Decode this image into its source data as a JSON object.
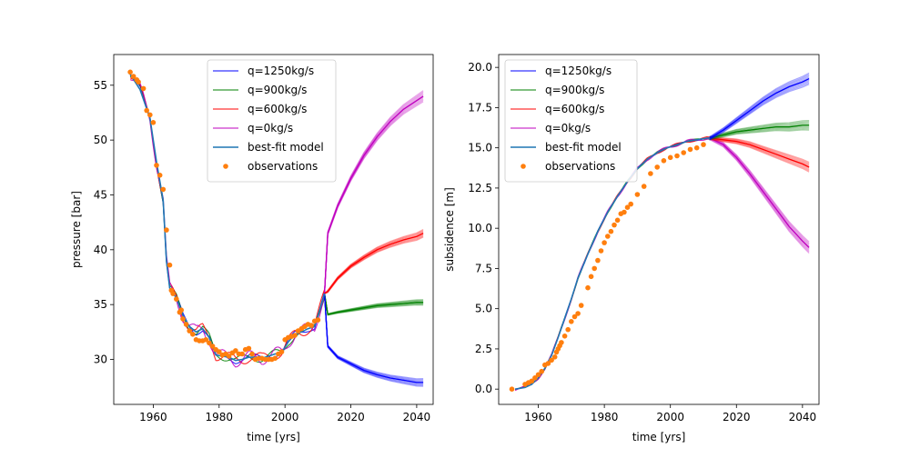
{
  "chart_data": [
    {
      "type": "line",
      "title": "",
      "xlabel": "time [yrs]",
      "ylabel": "pressure [bar]",
      "xlim": [
        1948,
        2045
      ],
      "ylim": [
        25.9,
        57.8
      ],
      "xticks": [
        1960,
        1980,
        2000,
        2020,
        2040
      ],
      "yticks": [
        30,
        35,
        40,
        45,
        50,
        55
      ],
      "legend_position": "top-center",
      "legend": [
        {
          "label": "q=1250kg/s",
          "style": "line",
          "color": "#0000ff"
        },
        {
          "label": "q=900kg/s",
          "style": "line",
          "color": "#008000"
        },
        {
          "label": "q=600kg/s",
          "style": "line",
          "color": "#ff0000"
        },
        {
          "label": "q=0kg/s",
          "style": "line",
          "color": "#bf00bf"
        },
        {
          "label": "best-fit model",
          "style": "line",
          "color": "#1f77b4"
        },
        {
          "label": "observations",
          "style": "marker",
          "color": "#ff7f0e"
        }
      ],
      "best_fit": {
        "x": [
          1953,
          1956,
          1959,
          1961,
          1963,
          1964,
          1965,
          1967,
          1969,
          1971,
          1973,
          1975,
          1977,
          1979,
          1981,
          1983,
          1985,
          1987,
          1989,
          1991,
          1993,
          1995,
          1997,
          1999,
          2001,
          2003,
          2005,
          2007,
          2009,
          2011,
          2012
        ],
        "y": [
          56.0,
          54.6,
          52.0,
          48.0,
          44.5,
          39.0,
          36.5,
          35.6,
          34.0,
          33.0,
          32.5,
          32.8,
          32.0,
          30.4,
          30.3,
          30.2,
          29.9,
          30.0,
          30.2,
          30.2,
          30.1,
          30.3,
          30.5,
          30.6,
          31.6,
          32.3,
          32.5,
          32.8,
          33.0,
          35.0,
          36.0
        ]
      },
      "history_band": 0.5,
      "observations": {
        "x": [
          1953,
          1954,
          1955,
          1955.5,
          1957,
          1958,
          1959,
          1960,
          1961,
          1962,
          1963,
          1964,
          1965,
          1965.5,
          1966,
          1967,
          1968,
          1968.5,
          1969,
          1970,
          1971,
          1972,
          1973,
          1974,
          1975,
          1976,
          1977,
          1978,
          1979,
          1980,
          1981,
          1982,
          1983,
          1984,
          1985,
          1986,
          1987,
          1988,
          1989,
          1990,
          1991,
          1992,
          1993,
          1994,
          1995,
          1996,
          1997,
          1998,
          1999,
          2000,
          2001,
          2002,
          2003,
          2004,
          2005,
          2006,
          2007,
          2008,
          2009,
          2010
        ],
        "y": [
          56.2,
          55.8,
          55.5,
          55.3,
          54.7,
          52.7,
          52.3,
          51.6,
          47.7,
          46.8,
          45.5,
          41.8,
          38.6,
          36.3,
          36.0,
          35.5,
          34.3,
          34.5,
          33.7,
          33.2,
          32.6,
          32.3,
          31.8,
          31.7,
          31.7,
          31.8,
          31.5,
          31.2,
          30.9,
          30.7,
          30.4,
          30.5,
          30.3,
          30.6,
          30.8,
          30.5,
          30.5,
          30.9,
          31.0,
          30.5,
          30.0,
          30.1,
          30.1,
          30.0,
          30.0,
          30.0,
          30.1,
          30.5,
          30.7,
          31.8,
          32.0,
          32.1,
          32.2,
          32.6,
          32.8,
          33.0,
          33.2,
          33.1,
          33.5,
          33.6
        ]
      },
      "forecast_start": {
        "x": 2012,
        "y": 36.0
      },
      "forecasts": [
        {
          "label": "q=0kg/s",
          "color": "#bf00bf",
          "x": [
            2013,
            2016,
            2020,
            2024,
            2028,
            2032,
            2036,
            2040,
            2042
          ],
          "y": [
            41.5,
            44.0,
            46.5,
            48.6,
            50.3,
            51.7,
            52.8,
            53.6,
            54.0
          ],
          "spread": 0.5
        },
        {
          "label": "q=600kg/s",
          "color": "#ff0000",
          "x": [
            2013,
            2016,
            2020,
            2024,
            2028,
            2032,
            2036,
            2040,
            2042
          ],
          "y": [
            36.2,
            37.4,
            38.5,
            39.3,
            40.0,
            40.5,
            40.9,
            41.2,
            41.5
          ],
          "spread": 0.35
        },
        {
          "label": "q=900kg/s",
          "color": "#008000",
          "x": [
            2013,
            2016,
            2020,
            2024,
            2028,
            2032,
            2036,
            2040,
            2042
          ],
          "y": [
            34.1,
            34.3,
            34.5,
            34.7,
            34.9,
            35.0,
            35.1,
            35.2,
            35.2
          ],
          "spread": 0.25
        },
        {
          "label": "q=1250kg/s",
          "color": "#0000ff",
          "x": [
            2013,
            2016,
            2020,
            2024,
            2028,
            2032,
            2036,
            2040,
            2042
          ],
          "y": [
            31.2,
            30.2,
            29.6,
            29.0,
            28.6,
            28.3,
            28.1,
            27.9,
            27.9
          ],
          "spread": 0.35
        }
      ]
    },
    {
      "type": "line",
      "title": "",
      "xlabel": "time [yrs]",
      "ylabel": "subsidence [m]",
      "xlim": [
        1948,
        2045
      ],
      "ylim": [
        -0.95,
        20.8
      ],
      "xticks": [
        1960,
        1980,
        2000,
        2020,
        2040
      ],
      "yticks": [
        0.0,
        2.5,
        5.0,
        7.5,
        10.0,
        12.5,
        15.0,
        17.5,
        20.0
      ],
      "ytick_labels": [
        "0.0",
        "2.5",
        "5.0",
        "7.5",
        "10.0",
        "12.5",
        "15.0",
        "17.5",
        "20.0"
      ],
      "legend_position": "top-left",
      "legend": [
        {
          "label": "q=1250kg/s",
          "style": "line",
          "color": "#0000ff"
        },
        {
          "label": "q=900kg/s",
          "style": "line",
          "color": "#008000"
        },
        {
          "label": "q=600kg/s",
          "style": "line",
          "color": "#ff0000"
        },
        {
          "label": "q=0kg/s",
          "style": "line",
          "color": "#bf00bf"
        },
        {
          "label": "best-fit model",
          "style": "line",
          "color": "#1f77b4"
        },
        {
          "label": "observations",
          "style": "marker",
          "color": "#ff7f0e"
        }
      ],
      "best_fit": {
        "x": [
          1953,
          1956,
          1958,
          1960,
          1962,
          1964,
          1966,
          1968,
          1970,
          1972,
          1975,
          1978,
          1981,
          1984,
          1987,
          1990,
          1993,
          1996,
          1999,
          2002,
          2005,
          2008,
          2011,
          2012
        ],
        "y": [
          0.0,
          0.1,
          0.3,
          0.7,
          1.3,
          2.1,
          3.2,
          4.4,
          5.6,
          6.9,
          8.4,
          9.8,
          11.0,
          12.0,
          12.9,
          13.7,
          14.3,
          14.7,
          15.0,
          15.2,
          15.4,
          15.5,
          15.6,
          15.6
        ]
      },
      "history_band": 0.08,
      "observations": {
        "x": [
          1952,
          1956,
          1957,
          1958,
          1959,
          1960,
          1961,
          1962,
          1963,
          1964,
          1965,
          1965.5,
          1966,
          1966.5,
          1967,
          1968,
          1969,
          1970,
          1971,
          1972,
          1973,
          1975,
          1976,
          1977,
          1978,
          1979,
          1980,
          1981,
          1982,
          1983,
          1984,
          1985,
          1986,
          1987,
          1988,
          1990,
          1992,
          1994,
          1996,
          1998,
          2000,
          2002,
          2004,
          2006,
          2008,
          2010
        ],
        "y": [
          0.0,
          0.3,
          0.4,
          0.5,
          0.7,
          0.9,
          1.1,
          1.5,
          1.6,
          1.8,
          2.0,
          2.3,
          2.5,
          2.7,
          2.9,
          3.3,
          3.7,
          4.2,
          4.5,
          4.7,
          5.2,
          6.3,
          7.0,
          7.5,
          8.0,
          8.6,
          9.1,
          9.5,
          9.8,
          10.2,
          10.5,
          10.9,
          11.0,
          11.3,
          11.5,
          12.1,
          12.6,
          13.4,
          13.8,
          14.2,
          14.4,
          14.5,
          14.7,
          14.9,
          15.0,
          15.2
        ]
      },
      "forecast_start": {
        "x": 2012,
        "y": 15.6
      },
      "forecasts": [
        {
          "label": "q=0kg/s",
          "color": "#bf00bf",
          "x": [
            2012,
            2016,
            2020,
            2024,
            2028,
            2032,
            2036,
            2040,
            2042
          ],
          "y": [
            15.6,
            15.2,
            14.4,
            13.4,
            12.3,
            11.2,
            10.1,
            9.2,
            8.8
          ],
          "spread": 0.35
        },
        {
          "label": "q=600kg/s",
          "color": "#ff0000",
          "x": [
            2012,
            2016,
            2020,
            2024,
            2028,
            2032,
            2036,
            2040,
            2042
          ],
          "y": [
            15.6,
            15.5,
            15.4,
            15.2,
            14.9,
            14.6,
            14.3,
            14.0,
            13.8
          ],
          "spread": 0.3
        },
        {
          "label": "q=900kg/s",
          "color": "#008000",
          "x": [
            2012,
            2016,
            2020,
            2024,
            2028,
            2032,
            2036,
            2040,
            2042
          ],
          "y": [
            15.6,
            15.8,
            16.0,
            16.1,
            16.2,
            16.3,
            16.3,
            16.4,
            16.4
          ],
          "spread": 0.3
        },
        {
          "label": "q=1250kg/s",
          "color": "#0000ff",
          "x": [
            2012,
            2016,
            2020,
            2024,
            2028,
            2032,
            2036,
            2040,
            2042
          ],
          "y": [
            15.6,
            16.1,
            16.7,
            17.3,
            17.9,
            18.4,
            18.8,
            19.1,
            19.3
          ],
          "spread": 0.35
        }
      ]
    }
  ]
}
